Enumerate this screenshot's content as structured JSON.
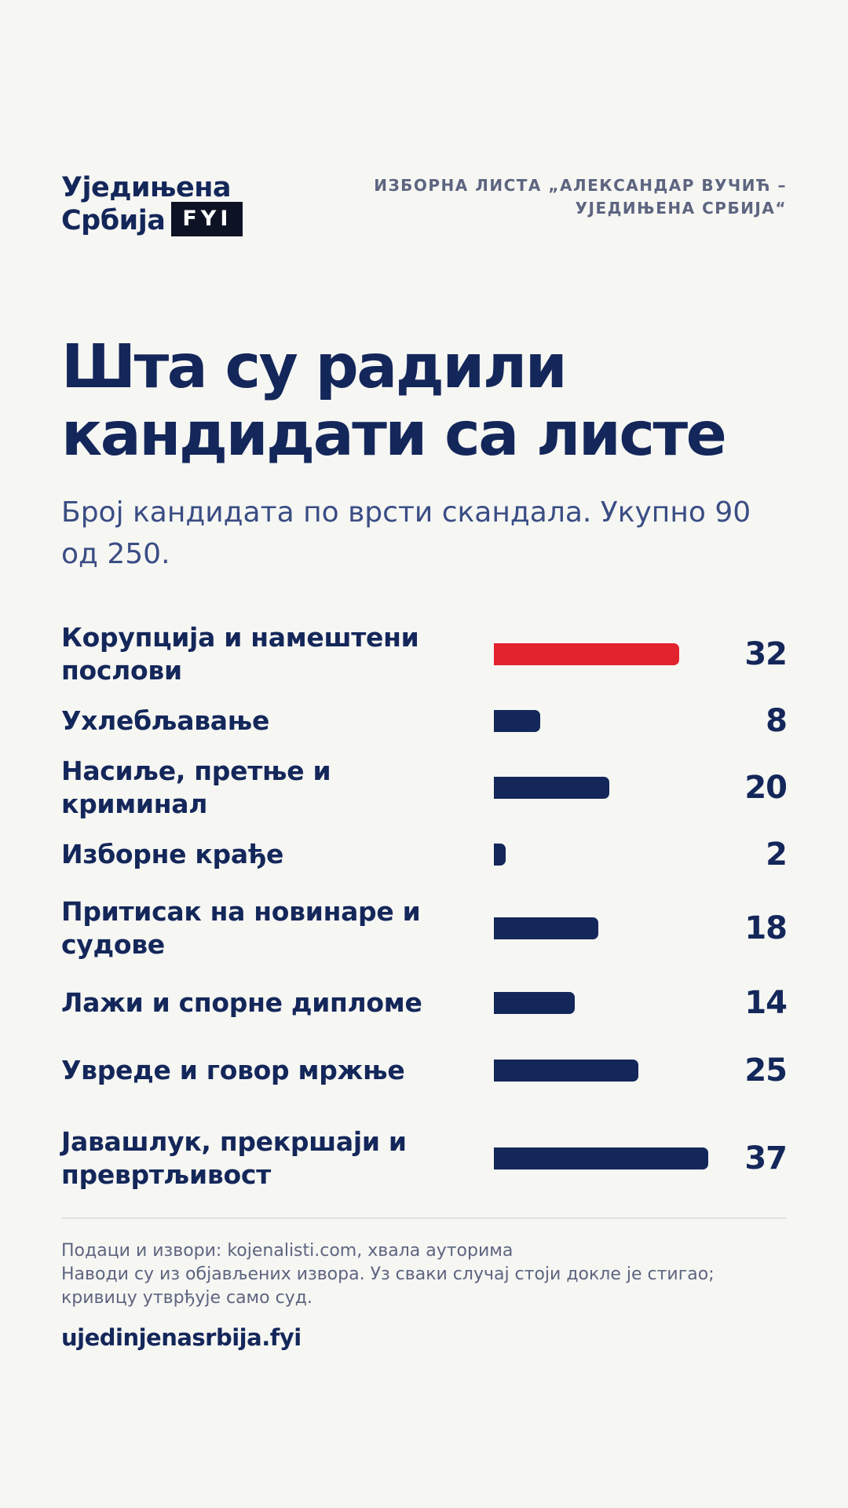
{
  "brand": {
    "line1": "Уједињена",
    "line2": "Србија",
    "badge": "FYI"
  },
  "header": {
    "list_line1": "ИЗБОРНА ЛИСТА „АЛЕКСАНДАР ВУЧИЋ –",
    "list_line2": "УЈЕДИЊЕНА СРБИЈА“"
  },
  "title_line1": "Шта су радили",
  "title_line2": "кандидати са листе",
  "subtitle": "Број кандидата по врсти скандала. Укупно 90 од 250.",
  "chart_data": {
    "type": "bar",
    "orientation": "horizontal",
    "title": "Шта су радили кандидати са листе",
    "subtitle": "Број кандидата по врсти скандала. Укупно 90 од 250.",
    "categories": [
      "Корупција и намештени послови",
      "Ухлебљавање",
      "Насиље, претње и криминал",
      "Изборне крађе",
      "Притисак на новинаре и судове",
      "Лажи и спорне дипломе",
      "Увреде и говор мржње",
      "Јавашлук, прекршаји и превртљивост"
    ],
    "values": [
      32,
      8,
      20,
      2,
      18,
      14,
      25,
      37
    ],
    "value_labels": [
      "32",
      "8",
      "20",
      "2",
      "18",
      "14",
      "25",
      "37"
    ],
    "xlim": [
      0,
      50
    ],
    "highlight_index": 0,
    "colors": {
      "bar": "#14275a",
      "highlight": "#e2232e"
    },
    "grid": false,
    "legend": "none"
  },
  "footer": {
    "sources": "Подаци и извори: kojenalisti.com, хвала ауторима",
    "note": "Наводи су из објављених извора. Уз сваки случај стоји докле је стигао; кривицу утврђује само суд.",
    "site": "ujedinjenasrbija.fyi"
  }
}
